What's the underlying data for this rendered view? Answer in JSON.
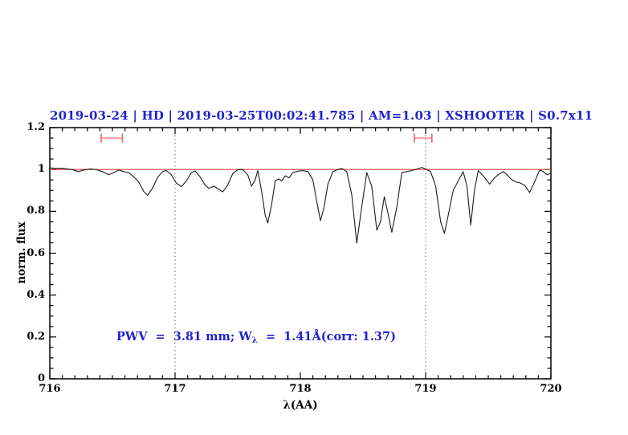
{
  "colors": {
    "accent_blue": "#2222cc",
    "continuum_red": "#e23b3b",
    "marker_red": "#e96a6a",
    "marker_bar_red": "#f4a9a9",
    "spectrum_black": "#1c1c1c"
  },
  "chart_data": {
    "type": "line",
    "title": "2019-03-24 | HD | 2019-03-25T00:02:41.785 | AM=1.03 | XSHOOTER | S0.7x11",
    "xlabel": "λ(AA)",
    "ylabel": "norm. flux",
    "xlim": [
      716,
      720
    ],
    "ylim": [
      0,
      1.2
    ],
    "x_major_ticks": [
      716,
      717,
      718,
      719,
      720
    ],
    "x_tick_labels": [
      "716",
      "717",
      "718",
      "719",
      "720"
    ],
    "x_minor_step": 0.1,
    "y_major_ticks": [
      0,
      0.2,
      0.4,
      0.6,
      0.8,
      1.0,
      1.2
    ],
    "y_tick_labels": [
      "0",
      "0.2",
      "0.4",
      "0.6",
      "0.8",
      "1",
      "1.2"
    ],
    "y_minor_step": 0.05,
    "grid": "vertical dotted lines only",
    "gridlines_x": [
      717,
      719
    ],
    "legend": "none",
    "continuum_level": 1.0,
    "series": [
      {
        "name": "normalized spectrum",
        "points": [
          [
            716.0,
            1.008
          ],
          [
            716.05,
            1.005
          ],
          [
            716.1,
            1.006
          ],
          [
            716.14,
            1.002
          ],
          [
            716.18,
            1.0
          ],
          [
            716.23,
            0.99
          ],
          [
            716.27,
            0.997
          ],
          [
            716.32,
            1.002
          ],
          [
            716.37,
            1.0
          ],
          [
            716.42,
            0.99
          ],
          [
            716.47,
            0.975
          ],
          [
            716.51,
            0.985
          ],
          [
            716.55,
            0.998
          ],
          [
            716.59,
            0.99
          ],
          [
            716.63,
            0.985
          ],
          [
            716.67,
            0.965
          ],
          [
            716.71,
            0.94
          ],
          [
            716.75,
            0.895
          ],
          [
            716.78,
            0.876
          ],
          [
            716.82,
            0.91
          ],
          [
            716.86,
            0.962
          ],
          [
            716.9,
            0.99
          ],
          [
            716.93,
            0.995
          ],
          [
            716.97,
            0.975
          ],
          [
            717.01,
            0.935
          ],
          [
            717.05,
            0.918
          ],
          [
            717.09,
            0.945
          ],
          [
            717.13,
            0.985
          ],
          [
            717.16,
            0.993
          ],
          [
            717.2,
            0.965
          ],
          [
            717.24,
            0.925
          ],
          [
            717.27,
            0.91
          ],
          [
            717.31,
            0.92
          ],
          [
            717.35,
            0.905
          ],
          [
            717.38,
            0.893
          ],
          [
            717.42,
            0.925
          ],
          [
            717.46,
            0.98
          ],
          [
            717.5,
            0.999
          ],
          [
            717.54,
            1.0
          ],
          [
            717.58,
            0.975
          ],
          [
            717.61,
            0.92
          ],
          [
            717.64,
            0.95
          ],
          [
            717.66,
            0.995
          ],
          [
            717.69,
            0.9
          ],
          [
            717.72,
            0.78
          ],
          [
            717.74,
            0.744
          ],
          [
            717.77,
            0.83
          ],
          [
            717.8,
            0.947
          ],
          [
            717.83,
            0.955
          ],
          [
            717.85,
            0.945
          ],
          [
            717.88,
            0.97
          ],
          [
            717.91,
            0.96
          ],
          [
            717.94,
            0.985
          ],
          [
            717.98,
            0.992
          ],
          [
            718.02,
            0.995
          ],
          [
            718.06,
            0.99
          ],
          [
            718.1,
            0.95
          ],
          [
            718.13,
            0.85
          ],
          [
            718.16,
            0.755
          ],
          [
            718.19,
            0.82
          ],
          [
            718.22,
            0.93
          ],
          [
            718.26,
            0.99
          ],
          [
            718.3,
            1.0
          ],
          [
            718.33,
            1.005
          ],
          [
            718.37,
            0.99
          ],
          [
            718.41,
            0.88
          ],
          [
            718.45,
            0.648
          ],
          [
            718.49,
            0.82
          ],
          [
            718.53,
            0.985
          ],
          [
            718.57,
            0.92
          ],
          [
            718.61,
            0.71
          ],
          [
            718.64,
            0.75
          ],
          [
            718.67,
            0.87
          ],
          [
            718.7,
            0.79
          ],
          [
            718.73,
            0.7
          ],
          [
            718.77,
            0.82
          ],
          [
            718.81,
            0.985
          ],
          [
            718.85,
            0.99
          ],
          [
            718.89,
            0.995
          ],
          [
            718.93,
            1.002
          ],
          [
            718.97,
            1.01
          ],
          [
            719.0,
            1.002
          ],
          [
            719.04,
            0.99
          ],
          [
            719.08,
            0.92
          ],
          [
            719.12,
            0.75
          ],
          [
            719.15,
            0.695
          ],
          [
            719.18,
            0.78
          ],
          [
            719.22,
            0.9
          ],
          [
            719.26,
            0.945
          ],
          [
            719.3,
            0.99
          ],
          [
            719.33,
            0.92
          ],
          [
            719.36,
            0.735
          ],
          [
            719.39,
            0.9
          ],
          [
            719.42,
            0.995
          ],
          [
            719.45,
            0.975
          ],
          [
            719.48,
            0.955
          ],
          [
            719.51,
            0.93
          ],
          [
            719.55,
            0.96
          ],
          [
            719.58,
            0.975
          ],
          [
            719.62,
            0.99
          ],
          [
            719.65,
            0.975
          ],
          [
            719.68,
            0.955
          ],
          [
            719.72,
            0.94
          ],
          [
            719.75,
            0.937
          ],
          [
            719.79,
            0.925
          ],
          [
            719.83,
            0.89
          ],
          [
            719.87,
            0.94
          ],
          [
            719.91,
            0.998
          ],
          [
            719.94,
            0.99
          ],
          [
            719.97,
            0.975
          ],
          [
            720.0,
            0.982
          ]
        ]
      }
    ],
    "range_markers": [
      {
        "name": "line-region-1",
        "x1": 716.41,
        "x2": 716.58,
        "y": 1.15
      },
      {
        "name": "line-region-2",
        "x1": 718.91,
        "x2": 719.05,
        "y": 1.15
      }
    ],
    "annotation": {
      "part1": "PWV  =  3.81 mm; W",
      "sub": "λ",
      "part2": "  =  1.41Å(corr: 1.37)"
    }
  }
}
